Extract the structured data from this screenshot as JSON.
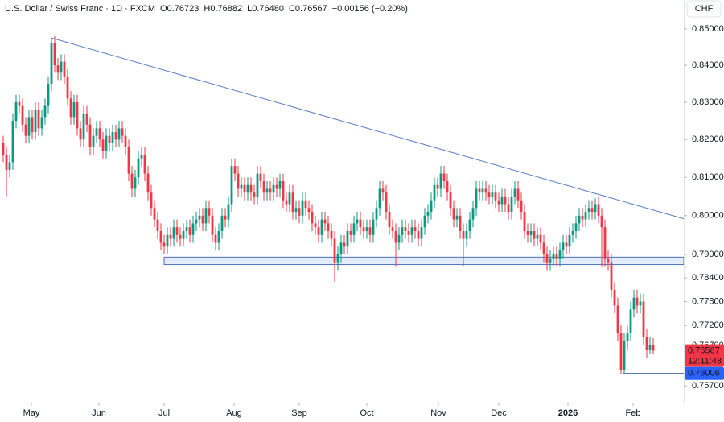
{
  "chart_data": {
    "type": "candlestick",
    "header": {
      "title": "U.S. Dollar / Swiss Franc · 1D · FXCM",
      "items": [
        {
          "key": "O",
          "value": "0.76723"
        },
        {
          "key": "H",
          "value": "0.76882"
        },
        {
          "key": "L",
          "value": "0.76480"
        },
        {
          "key": "C",
          "value": "0.76567"
        }
      ],
      "change": "−0.00156 (−0.20%)"
    },
    "currency": "CHF",
    "up_color": "#089981",
    "down_color": "#f23645",
    "log": true,
    "xlim": [
      -1,
      211.5
    ],
    "ylim": [
      0.7529,
      0.858
    ],
    "xticks": [
      {
        "value": 8.75,
        "label": "May"
      },
      {
        "value": 29.75,
        "label": "Jun"
      },
      {
        "value": 50,
        "label": "Jul"
      },
      {
        "value": 71.75,
        "label": "Aug"
      },
      {
        "value": 92,
        "label": "Sep"
      },
      {
        "value": 113,
        "label": "Oct"
      },
      {
        "value": 135.25,
        "label": "Nov"
      },
      {
        "value": 154,
        "label": "Dec"
      },
      {
        "value": 175.5,
        "label": "2026"
      },
      {
        "value": 195.75,
        "label": "Feb"
      }
    ],
    "yticks": [
      {
        "value": 0.85,
        "label": "0.85000"
      },
      {
        "value": 0.84,
        "label": "0.84000"
      },
      {
        "value": 0.83,
        "label": "0.83000"
      },
      {
        "value": 0.82,
        "label": "0.82000"
      },
      {
        "value": 0.81,
        "label": "0.81000"
      },
      {
        "value": 0.8,
        "label": "0.80000"
      },
      {
        "value": 0.79,
        "label": "0.79000"
      },
      {
        "value": 0.784,
        "label": "0.78400"
      },
      {
        "value": 0.778,
        "label": "0.77800"
      },
      {
        "value": 0.772,
        "label": "0.77200"
      },
      {
        "value": 0.767,
        "label": "0.76700"
      },
      {
        "value": 0.757,
        "label": "0.75700"
      }
    ],
    "trendline": {
      "x": [
        15,
        211.5
      ],
      "y": [
        0.8475,
        0.7992
      ],
      "color": "#5b7fc7"
    },
    "zone": {
      "x": [
        50,
        211.5
      ],
      "y": [
        0.7874,
        0.7893
      ],
      "color": "#4a6fb8"
    },
    "level": {
      "x": [
        192.75,
        211.5
      ],
      "y": 0.76006,
      "color": "#2b4f8f"
    },
    "price_labels": [
      {
        "value": 0.76567,
        "label": "0.76567",
        "sub": "12:11:48",
        "color": "#f23645"
      },
      {
        "value": 0.76006,
        "label": "0.76006",
        "color": "#2962ff"
      }
    ],
    "candles": [
      [
        0.819,
        0.821,
        0.814,
        0.816
      ],
      [
        0.816,
        0.818,
        0.805,
        0.812
      ],
      [
        0.812,
        0.816,
        0.81,
        0.814
      ],
      [
        0.814,
        0.827,
        0.812,
        0.825
      ],
      [
        0.825,
        0.832,
        0.823,
        0.83
      ],
      [
        0.83,
        0.832,
        0.827,
        0.829
      ],
      [
        0.829,
        0.831,
        0.822,
        0.824
      ],
      [
        0.824,
        0.826,
        0.819,
        0.821
      ],
      [
        0.821,
        0.828,
        0.819,
        0.826
      ],
      [
        0.826,
        0.828,
        0.82,
        0.822
      ],
      [
        0.822,
        0.83,
        0.82,
        0.828
      ],
      [
        0.828,
        0.83,
        0.821,
        0.823
      ],
      [
        0.823,
        0.828,
        0.821,
        0.826
      ],
      [
        0.826,
        0.831,
        0.824,
        0.829
      ],
      [
        0.829,
        0.837,
        0.827,
        0.835
      ],
      [
        0.835,
        0.8475,
        0.833,
        0.846
      ],
      [
        0.846,
        0.848,
        0.838,
        0.84
      ],
      [
        0.84,
        0.842,
        0.836,
        0.838
      ],
      [
        0.838,
        0.843,
        0.836,
        0.841
      ],
      [
        0.841,
        0.843,
        0.835,
        0.837
      ],
      [
        0.837,
        0.839,
        0.829,
        0.831
      ],
      [
        0.831,
        0.833,
        0.824,
        0.826
      ],
      [
        0.826,
        0.832,
        0.824,
        0.83
      ],
      [
        0.83,
        0.832,
        0.821,
        0.823
      ],
      [
        0.823,
        0.825,
        0.818,
        0.82
      ],
      [
        0.82,
        0.829,
        0.818,
        0.827
      ],
      [
        0.827,
        0.829,
        0.822,
        0.824
      ],
      [
        0.824,
        0.826,
        0.816,
        0.818
      ],
      [
        0.818,
        0.823,
        0.816,
        0.821
      ],
      [
        0.821,
        0.825,
        0.819,
        0.823
      ],
      [
        0.823,
        0.825,
        0.818,
        0.82
      ],
      [
        0.82,
        0.822,
        0.815,
        0.817
      ],
      [
        0.817,
        0.823,
        0.815,
        0.821
      ],
      [
        0.821,
        0.823,
        0.817,
        0.819
      ],
      [
        0.819,
        0.824,
        0.817,
        0.822
      ],
      [
        0.822,
        0.824,
        0.818,
        0.82
      ],
      [
        0.82,
        0.825,
        0.818,
        0.823
      ],
      [
        0.823,
        0.825,
        0.819,
        0.821
      ],
      [
        0.821,
        0.823,
        0.816,
        0.818
      ],
      [
        0.818,
        0.82,
        0.809,
        0.811
      ],
      [
        0.811,
        0.813,
        0.805,
        0.807
      ],
      [
        0.807,
        0.812,
        0.805,
        0.81
      ],
      [
        0.81,
        0.817,
        0.808,
        0.815
      ],
      [
        0.815,
        0.818,
        0.813,
        0.816
      ],
      [
        0.816,
        0.818,
        0.809,
        0.811
      ],
      [
        0.811,
        0.813,
        0.804,
        0.806
      ],
      [
        0.806,
        0.808,
        0.8,
        0.802
      ],
      [
        0.802,
        0.804,
        0.797,
        0.799
      ],
      [
        0.799,
        0.801,
        0.794,
        0.796
      ],
      [
        0.796,
        0.798,
        0.791,
        0.793
      ],
      [
        0.793,
        0.795,
        0.79,
        0.792
      ],
      [
        0.792,
        0.797,
        0.79,
        0.795
      ],
      [
        0.795,
        0.797,
        0.792,
        0.794
      ],
      [
        0.794,
        0.799,
        0.792,
        0.797
      ],
      [
        0.797,
        0.799,
        0.793,
        0.795
      ],
      [
        0.795,
        0.797,
        0.792,
        0.794
      ],
      [
        0.794,
        0.798,
        0.792,
        0.796
      ],
      [
        0.796,
        0.799,
        0.794,
        0.797
      ],
      [
        0.797,
        0.799,
        0.793,
        0.795
      ],
      [
        0.795,
        0.8,
        0.793,
        0.798
      ],
      [
        0.798,
        0.801,
        0.796,
        0.799
      ],
      [
        0.799,
        0.802,
        0.797,
        0.8
      ],
      [
        0.8,
        0.802,
        0.796,
        0.798
      ],
      [
        0.798,
        0.804,
        0.796,
        0.802
      ],
      [
        0.802,
        0.804,
        0.798,
        0.8
      ],
      [
        0.8,
        0.802,
        0.793,
        0.795
      ],
      [
        0.795,
        0.797,
        0.791,
        0.793
      ],
      [
        0.793,
        0.798,
        0.791,
        0.796
      ],
      [
        0.796,
        0.802,
        0.794,
        0.8
      ],
      [
        0.8,
        0.802,
        0.797,
        0.799
      ],
      [
        0.799,
        0.805,
        0.797,
        0.803
      ],
      [
        0.803,
        0.815,
        0.801,
        0.813
      ],
      [
        0.813,
        0.815,
        0.809,
        0.811
      ],
      [
        0.811,
        0.813,
        0.805,
        0.807
      ],
      [
        0.807,
        0.81,
        0.805,
        0.808
      ],
      [
        0.808,
        0.81,
        0.804,
        0.806
      ],
      [
        0.806,
        0.81,
        0.804,
        0.808
      ],
      [
        0.808,
        0.81,
        0.804,
        0.806
      ],
      [
        0.806,
        0.808,
        0.803,
        0.805
      ],
      [
        0.805,
        0.813,
        0.803,
        0.811
      ],
      [
        0.811,
        0.813,
        0.807,
        0.809
      ],
      [
        0.809,
        0.811,
        0.804,
        0.806
      ],
      [
        0.806,
        0.809,
        0.804,
        0.807
      ],
      [
        0.807,
        0.809,
        0.804,
        0.806
      ],
      [
        0.806,
        0.81,
        0.804,
        0.808
      ],
      [
        0.808,
        0.81,
        0.805,
        0.807
      ],
      [
        0.807,
        0.811,
        0.805,
        0.809
      ],
      [
        0.809,
        0.811,
        0.802,
        0.804
      ],
      [
        0.804,
        0.806,
        0.801,
        0.803
      ],
      [
        0.803,
        0.808,
        0.801,
        0.806
      ],
      [
        0.806,
        0.808,
        0.799,
        0.801
      ],
      [
        0.801,
        0.804,
        0.799,
        0.802
      ],
      [
        0.802,
        0.804,
        0.798,
        0.8
      ],
      [
        0.8,
        0.806,
        0.798,
        0.804
      ],
      [
        0.804,
        0.806,
        0.8,
        0.802
      ],
      [
        0.802,
        0.804,
        0.799,
        0.801
      ],
      [
        0.801,
        0.803,
        0.796,
        0.798
      ],
      [
        0.798,
        0.8,
        0.795,
        0.797
      ],
      [
        0.797,
        0.799,
        0.793,
        0.795
      ],
      [
        0.795,
        0.801,
        0.793,
        0.799
      ],
      [
        0.799,
        0.801,
        0.796,
        0.798
      ],
      [
        0.798,
        0.8,
        0.794,
        0.796
      ],
      [
        0.796,
        0.798,
        0.792,
        0.794
      ],
      [
        0.794,
        0.796,
        0.783,
        0.788
      ],
      [
        0.788,
        0.792,
        0.786,
        0.79
      ],
      [
        0.79,
        0.795,
        0.788,
        0.793
      ],
      [
        0.793,
        0.795,
        0.79,
        0.792
      ],
      [
        0.792,
        0.798,
        0.79,
        0.796
      ],
      [
        0.796,
        0.798,
        0.793,
        0.795
      ],
      [
        0.795,
        0.8,
        0.793,
        0.798
      ],
      [
        0.798,
        0.801,
        0.796,
        0.799
      ],
      [
        0.799,
        0.801,
        0.795,
        0.797
      ],
      [
        0.797,
        0.799,
        0.794,
        0.796
      ],
      [
        0.796,
        0.799,
        0.794,
        0.797
      ],
      [
        0.797,
        0.799,
        0.793,
        0.795
      ],
      [
        0.795,
        0.801,
        0.793,
        0.799
      ],
      [
        0.799,
        0.804,
        0.797,
        0.802
      ],
      [
        0.802,
        0.809,
        0.8,
        0.807
      ],
      [
        0.807,
        0.809,
        0.804,
        0.806
      ],
      [
        0.806,
        0.808,
        0.799,
        0.801
      ],
      [
        0.801,
        0.803,
        0.795,
        0.797
      ],
      [
        0.797,
        0.799,
        0.794,
        0.796
      ],
      [
        0.796,
        0.798,
        0.787,
        0.793
      ],
      [
        0.793,
        0.797,
        0.791,
        0.795
      ],
      [
        0.795,
        0.799,
        0.793,
        0.797
      ],
      [
        0.797,
        0.799,
        0.794,
        0.796
      ],
      [
        0.796,
        0.798,
        0.793,
        0.795
      ],
      [
        0.795,
        0.799,
        0.793,
        0.797
      ],
      [
        0.797,
        0.799,
        0.794,
        0.796
      ],
      [
        0.796,
        0.798,
        0.792,
        0.794
      ],
      [
        0.794,
        0.799,
        0.792,
        0.797
      ],
      [
        0.797,
        0.802,
        0.795,
        0.8
      ],
      [
        0.8,
        0.803,
        0.798,
        0.801
      ],
      [
        0.801,
        0.806,
        0.799,
        0.804
      ],
      [
        0.804,
        0.81,
        0.802,
        0.808
      ],
      [
        0.808,
        0.81,
        0.805,
        0.807
      ],
      [
        0.807,
        0.813,
        0.805,
        0.811
      ],
      [
        0.811,
        0.813,
        0.807,
        0.809
      ],
      [
        0.809,
        0.811,
        0.804,
        0.806
      ],
      [
        0.806,
        0.808,
        0.8,
        0.802
      ],
      [
        0.802,
        0.804,
        0.797,
        0.799
      ],
      [
        0.799,
        0.802,
        0.797,
        0.8
      ],
      [
        0.8,
        0.802,
        0.794,
        0.796
      ],
      [
        0.796,
        0.798,
        0.787,
        0.794
      ],
      [
        0.794,
        0.798,
        0.792,
        0.796
      ],
      [
        0.796,
        0.801,
        0.794,
        0.799
      ],
      [
        0.799,
        0.804,
        0.797,
        0.802
      ],
      [
        0.802,
        0.809,
        0.8,
        0.807
      ],
      [
        0.807,
        0.809,
        0.804,
        0.806
      ],
      [
        0.806,
        0.809,
        0.804,
        0.807
      ],
      [
        0.807,
        0.809,
        0.804,
        0.806
      ],
      [
        0.806,
        0.808,
        0.803,
        0.805
      ],
      [
        0.805,
        0.808,
        0.803,
        0.806
      ],
      [
        0.806,
        0.808,
        0.802,
        0.804
      ],
      [
        0.804,
        0.806,
        0.801,
        0.803
      ],
      [
        0.803,
        0.807,
        0.801,
        0.805
      ],
      [
        0.805,
        0.807,
        0.801,
        0.803
      ],
      [
        0.803,
        0.805,
        0.799,
        0.801
      ],
      [
        0.801,
        0.807,
        0.799,
        0.805
      ],
      [
        0.805,
        0.809,
        0.803,
        0.807
      ],
      [
        0.807,
        0.809,
        0.802,
        0.804
      ],
      [
        0.804,
        0.806,
        0.799,
        0.801
      ],
      [
        0.801,
        0.803,
        0.794,
        0.796
      ],
      [
        0.796,
        0.798,
        0.793,
        0.795
      ],
      [
        0.795,
        0.798,
        0.793,
        0.796
      ],
      [
        0.796,
        0.798,
        0.792,
        0.794
      ],
      [
        0.794,
        0.797,
        0.792,
        0.795
      ],
      [
        0.795,
        0.797,
        0.791,
        0.793
      ],
      [
        0.793,
        0.795,
        0.788,
        0.79
      ],
      [
        0.79,
        0.792,
        0.786,
        0.788
      ],
      [
        0.788,
        0.791,
        0.786,
        0.789
      ],
      [
        0.789,
        0.792,
        0.787,
        0.79
      ],
      [
        0.79,
        0.792,
        0.787,
        0.789
      ],
      [
        0.789,
        0.793,
        0.787,
        0.791
      ],
      [
        0.791,
        0.795,
        0.789,
        0.793
      ],
      [
        0.793,
        0.795,
        0.79,
        0.792
      ],
      [
        0.792,
        0.797,
        0.79,
        0.795
      ],
      [
        0.795,
        0.798,
        0.793,
        0.796
      ],
      [
        0.796,
        0.8,
        0.794,
        0.798
      ],
      [
        0.798,
        0.802,
        0.796,
        0.8
      ],
      [
        0.8,
        0.802,
        0.797,
        0.799
      ],
      [
        0.799,
        0.803,
        0.797,
        0.801
      ],
      [
        0.801,
        0.804,
        0.799,
        0.802
      ],
      [
        0.802,
        0.804,
        0.799,
        0.801
      ],
      [
        0.801,
        0.8045,
        0.799,
        0.803
      ],
      [
        0.803,
        0.805,
        0.798,
        0.8
      ],
      [
        0.8,
        0.802,
        0.787,
        0.797
      ],
      [
        0.797,
        0.799,
        0.787,
        0.789
      ],
      [
        0.789,
        0.791,
        0.786,
        0.788
      ],
      [
        0.788,
        0.79,
        0.779,
        0.781
      ],
      [
        0.781,
        0.783,
        0.775,
        0.777
      ],
      [
        0.777,
        0.779,
        0.768,
        0.77
      ],
      [
        0.77,
        0.772,
        0.76,
        0.761
      ],
      [
        0.761,
        0.77,
        0.76,
        0.768
      ],
      [
        0.768,
        0.772,
        0.766,
        0.77
      ],
      [
        0.77,
        0.778,
        0.768,
        0.776
      ],
      [
        0.776,
        0.781,
        0.774,
        0.779
      ],
      [
        0.779,
        0.781,
        0.775,
        0.777
      ],
      [
        0.777,
        0.78,
        0.775,
        0.778
      ],
      [
        0.778,
        0.78,
        0.767,
        0.769
      ],
      [
        0.769,
        0.771,
        0.764,
        0.766
      ],
      [
        0.766,
        0.769,
        0.765,
        0.7672
      ],
      [
        0.76723,
        0.76882,
        0.7648,
        0.76567
      ]
    ]
  }
}
